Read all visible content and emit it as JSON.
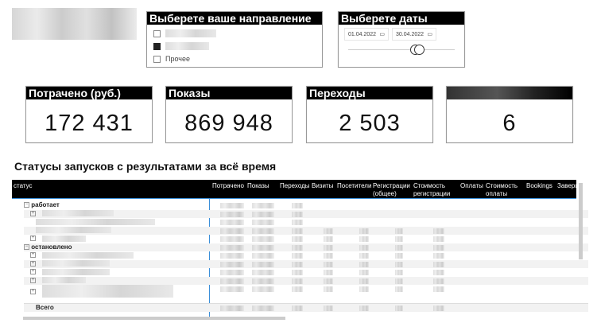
{
  "direction_slicer": {
    "title": "Выберете ваше направление",
    "items": [
      {
        "label": "",
        "checked": false,
        "redacted": true
      },
      {
        "label": "",
        "checked": true,
        "redacted": true
      },
      {
        "label": "Прочее",
        "checked": false
      }
    ]
  },
  "date_slicer": {
    "title": "Выберете даты",
    "start": "01.04.2022",
    "end": "30.04.2022",
    "icon": "calendar-icon"
  },
  "kpis": [
    {
      "title": "Потрачено (руб.)",
      "value": "172 431"
    },
    {
      "title": "Показы",
      "value": "869 948"
    },
    {
      "title": "Переходы",
      "value": "2 503"
    },
    {
      "title": "",
      "value": "6",
      "title_redacted": true
    }
  ],
  "table": {
    "title": "Статусы запусков с результатами за всё время",
    "columns": [
      "статус",
      "Потрачено",
      "Показы",
      "Переходы",
      "Визиты",
      "Посетители",
      "Регистрации (общее)",
      "Стоимость регистрации",
      "Оплаты",
      "Стоимость оплаты",
      "Bookings",
      "Завершение триалов"
    ],
    "groups": [
      {
        "label": "работает"
      },
      {
        "label": "остановлено"
      }
    ],
    "total_label": "Всего"
  },
  "colors": {
    "header_bg": "#000000",
    "accent_line": "#3a8fd9"
  }
}
